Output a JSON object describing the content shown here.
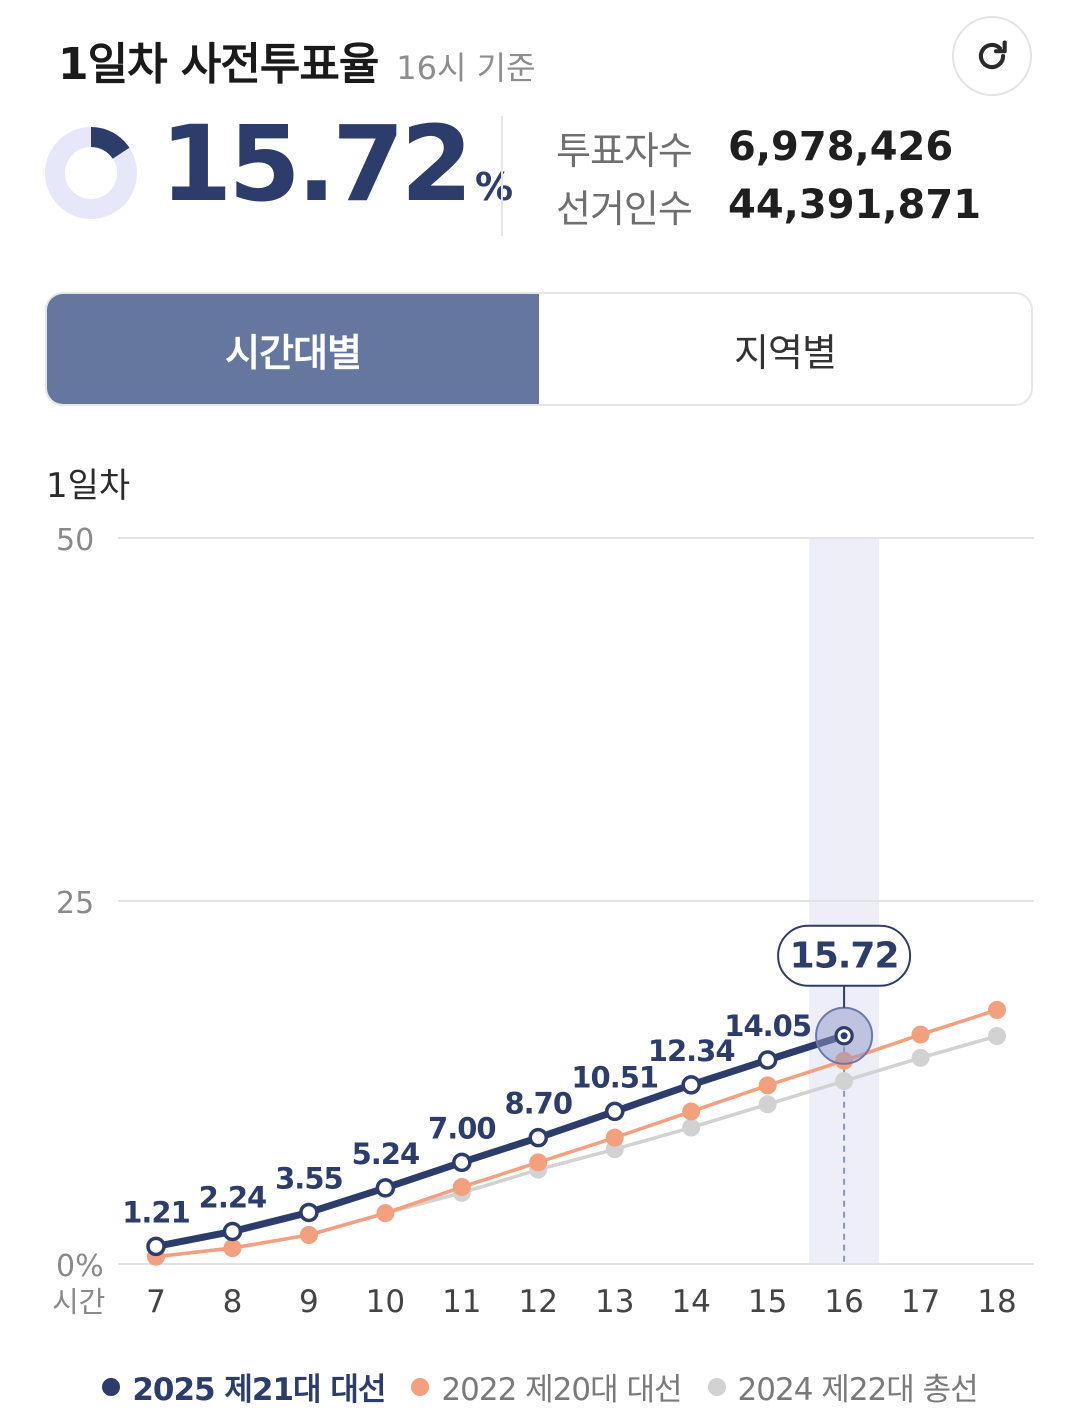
{
  "header": {
    "title": "1일차 사전투표율",
    "subtitle": "16시 기준"
  },
  "icons": {
    "refresh": "refresh-icon"
  },
  "summary": {
    "rate": "15.72",
    "rate_unit": "%",
    "rate_fraction": 0.1572,
    "voters_label": "투표자수",
    "voters_value": "6,978,426",
    "electorate_label": "선거인수",
    "electorate_value": "44,391,871"
  },
  "tabs": [
    {
      "label": "시간대별",
      "active": true
    },
    {
      "label": "지역별",
      "active": false
    }
  ],
  "chart_section_label": "1일차",
  "colors": {
    "accent": "#2d3d6b",
    "tab_active": "#66779f",
    "series_2025": "#2d3d6b",
    "series_2022": "#f4a07f",
    "series_2024": "#d2d2d2",
    "highlight_band": "#eeeef9"
  },
  "chart_data": {
    "type": "line",
    "x": [
      7,
      8,
      9,
      10,
      11,
      12,
      13,
      14,
      15,
      16,
      17,
      18
    ],
    "x_tick_labels": [
      "7",
      "8",
      "9",
      "10",
      "11",
      "12",
      "13",
      "14",
      "15",
      "16",
      "17",
      "18"
    ],
    "x_axis_label": "시간",
    "ylim": [
      0,
      50
    ],
    "y_ticks": [
      0,
      25,
      50
    ],
    "y_tick_labels": [
      "0%",
      "25",
      "50"
    ],
    "grid": true,
    "highlight_x": 16,
    "highlight_label": "15.72",
    "series": [
      {
        "name": "2025 제21대 대선",
        "color": "#2d3d6b",
        "values": [
          1.21,
          2.24,
          3.55,
          5.24,
          7.0,
          8.7,
          10.51,
          12.34,
          14.05,
          15.72,
          null,
          null
        ],
        "labels": [
          "1.21",
          "2.24",
          "3.55",
          "5.24",
          "7.00",
          "8.70",
          "10.51",
          "12.34",
          "14.05",
          null,
          null,
          null
        ]
      },
      {
        "name": "2022 제20대 대선",
        "color": "#f4a07f",
        "values": [
          0.5,
          1.1,
          2.0,
          3.5,
          5.3,
          7.0,
          8.7,
          10.5,
          12.3,
          14.0,
          15.8,
          17.5
        ]
      },
      {
        "name": "2024 제22대 총선",
        "color": "#d2d2d2",
        "values": [
          0.5,
          1.1,
          2.0,
          3.5,
          4.9,
          6.5,
          7.9,
          9.4,
          11.0,
          12.6,
          14.2,
          15.7
        ]
      }
    ],
    "legend_position": "bottom"
  }
}
